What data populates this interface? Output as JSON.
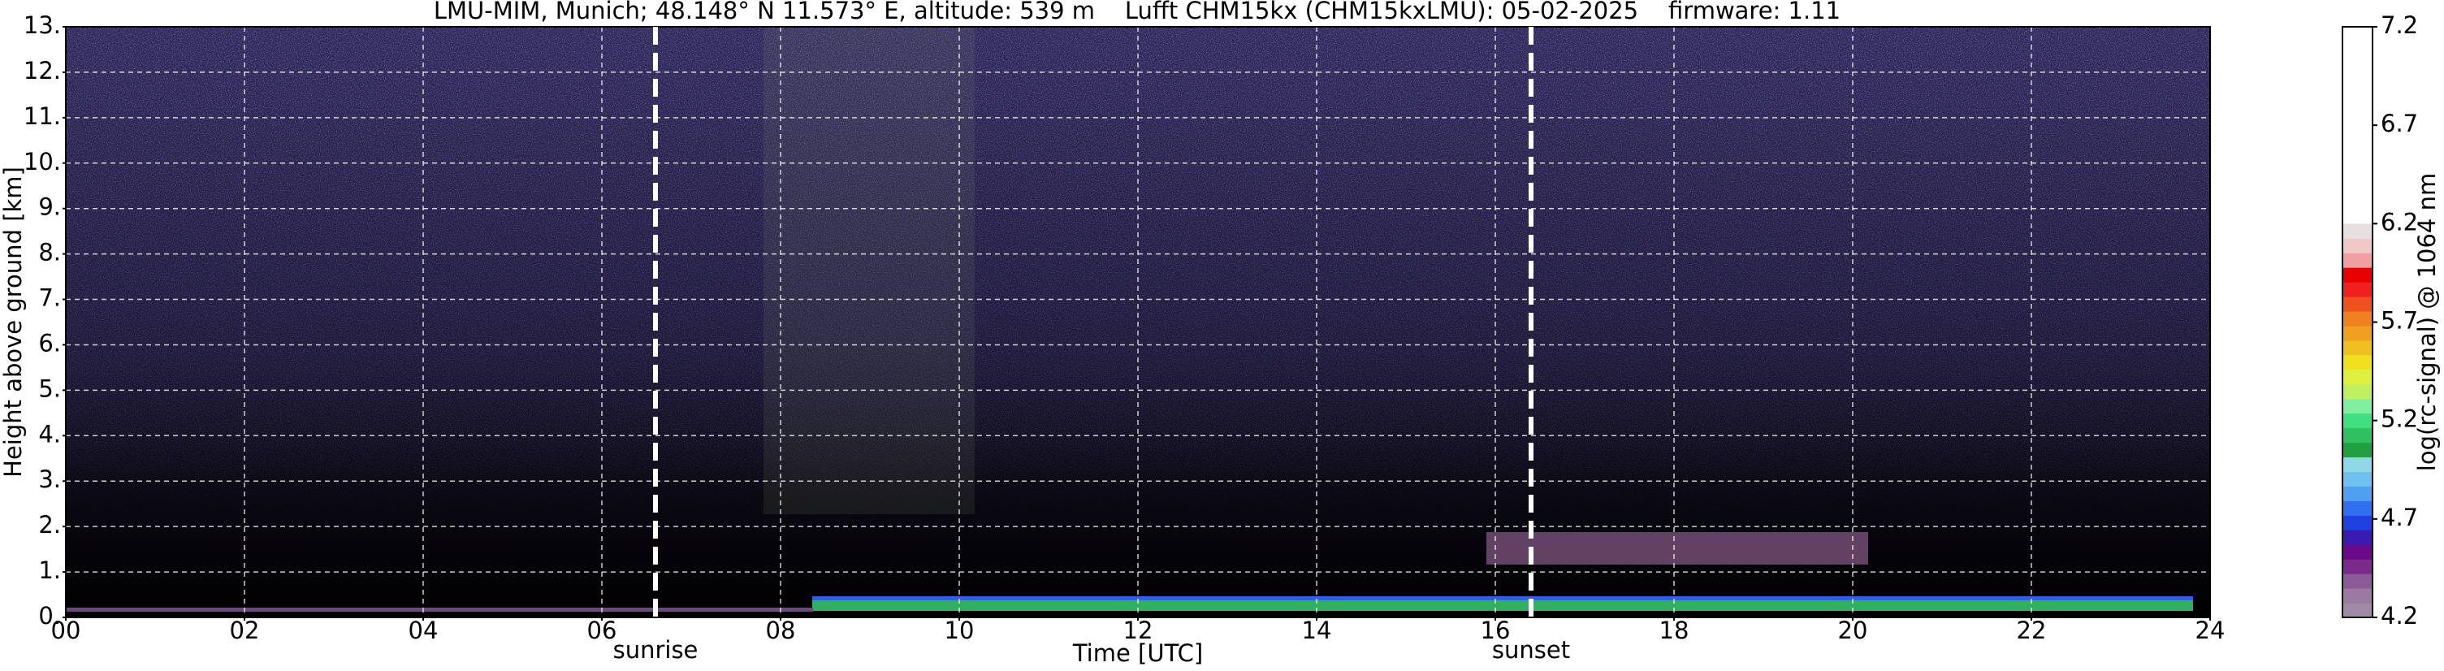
{
  "chart_data": {
    "type": "heatmap",
    "title": "LMU-MIM, Munich; 48.148° N 11.573° E, altitude: 539 m    Lufft CHM15kx (CHM15kxLMU): 05-02-2025    firmware: 1.11",
    "xlabel": "Time [UTC]",
    "ylabel": "Height above ground [km]",
    "xlim": [
      0,
      24
    ],
    "xticks": [
      {
        "value": 0,
        "label": "00"
      },
      {
        "value": 2,
        "label": "02"
      },
      {
        "value": 4,
        "label": "04"
      },
      {
        "value": 6,
        "label": "06"
      },
      {
        "value": 8,
        "label": "08"
      },
      10,
      12,
      14,
      16,
      18,
      20,
      22,
      24
    ],
    "ylim": [
      0,
      13
    ],
    "yticks": [
      {
        "value": 0,
        "label": "0."
      },
      {
        "value": 1,
        "label": "1."
      },
      {
        "value": 2,
        "label": "2."
      },
      {
        "value": 3,
        "label": "3."
      },
      {
        "value": 4,
        "label": "4."
      },
      {
        "value": 5,
        "label": "5."
      },
      {
        "value": 6,
        "label": "6."
      },
      {
        "value": 7,
        "label": "7."
      },
      {
        "value": 8,
        "label": "8."
      },
      {
        "value": 9,
        "label": "9."
      },
      {
        "value": 10,
        "label": "10."
      },
      {
        "value": 11,
        "label": "11."
      },
      {
        "value": 12,
        "label": "12."
      },
      {
        "value": 13,
        "label": "13."
      }
    ],
    "grid": true,
    "events": [
      {
        "label": "sunrise",
        "x": 6.6
      },
      {
        "label": "sunset",
        "x": 16.4
      }
    ],
    "colorbar": {
      "label": "log(rc-signal) @ 1064 nm",
      "lim": [
        4.2,
        7.2
      ],
      "ticks": [
        4.2,
        4.7,
        5.2,
        5.7,
        6.2,
        6.7,
        7.2
      ],
      "colors": [
        "#a08aa8",
        "#9a7aa0",
        "#8c5a96",
        "#7a2a8a",
        "#6a0a8a",
        "#3a1ab0",
        "#2040e0",
        "#3070f0",
        "#50a0f0",
        "#70c0f0",
        "#90d8e8",
        "#20a040",
        "#30c060",
        "#40e080",
        "#80f0a0",
        "#c0f060",
        "#e0f040",
        "#f0e020",
        "#f0c020",
        "#f0a020",
        "#f08020",
        "#f05020",
        "#f02020",
        "#e80000",
        "#f0a0a0",
        "#f0c8c8",
        "#e8e0e0"
      ],
      "colors_top": 6.2,
      "over_color": "#ffffff"
    }
  }
}
